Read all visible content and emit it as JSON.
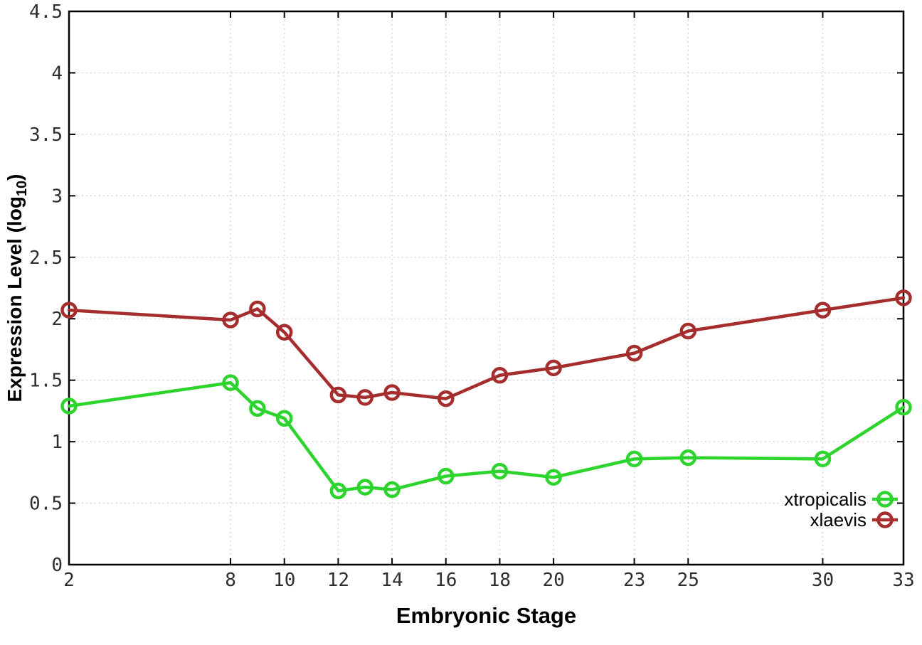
{
  "chart_data": {
    "type": "line",
    "title": "",
    "xlabel": "Embryonic Stage",
    "ylabel": "Expression Level (log10)",
    "ylabel_parts": {
      "main": "Expression Level (log",
      "sub": "10",
      "end": ")"
    },
    "x": [
      2,
      8,
      9,
      10,
      12,
      13,
      14,
      16,
      18,
      20,
      23,
      25,
      30,
      33
    ],
    "xlim": [
      2,
      33
    ],
    "ylim": [
      0,
      4.5
    ],
    "xticks": [
      2,
      8,
      10,
      12,
      14,
      16,
      18,
      20,
      23,
      25,
      30,
      33
    ],
    "xtick_labels": [
      "2",
      "8",
      "10",
      "12",
      "14",
      "16",
      "18",
      "20",
      "23",
      "25",
      "30",
      "33"
    ],
    "yticks": [
      0,
      0.5,
      1,
      1.5,
      2,
      2.5,
      3,
      3.5,
      4,
      4.5
    ],
    "ytick_labels": [
      "0",
      "0.5",
      "1",
      "1.5",
      "2",
      "2.5",
      "3",
      "3.5",
      "4",
      "4.5"
    ],
    "grid": true,
    "marker": "open-circle",
    "legend_position": "inside-bottom-right",
    "series": [
      {
        "name": "xtropicalis",
        "color": "#2dd42d",
        "values": [
          1.29,
          1.48,
          1.27,
          1.19,
          0.6,
          0.63,
          0.61,
          0.72,
          0.76,
          0.71,
          0.86,
          0.87,
          0.86,
          1.28
        ]
      },
      {
        "name": "xlaevis",
        "color": "#a52d2d",
        "values": [
          2.07,
          1.99,
          2.08,
          1.89,
          1.38,
          1.36,
          1.4,
          1.35,
          1.54,
          1.6,
          1.72,
          1.9,
          2.07,
          2.17
        ]
      }
    ]
  },
  "colors": {
    "grid": "#c6c6c6",
    "axis": "#000000",
    "tick_text": "#2e2e2e",
    "label_text": "#000000",
    "background": "#ffffff"
  }
}
